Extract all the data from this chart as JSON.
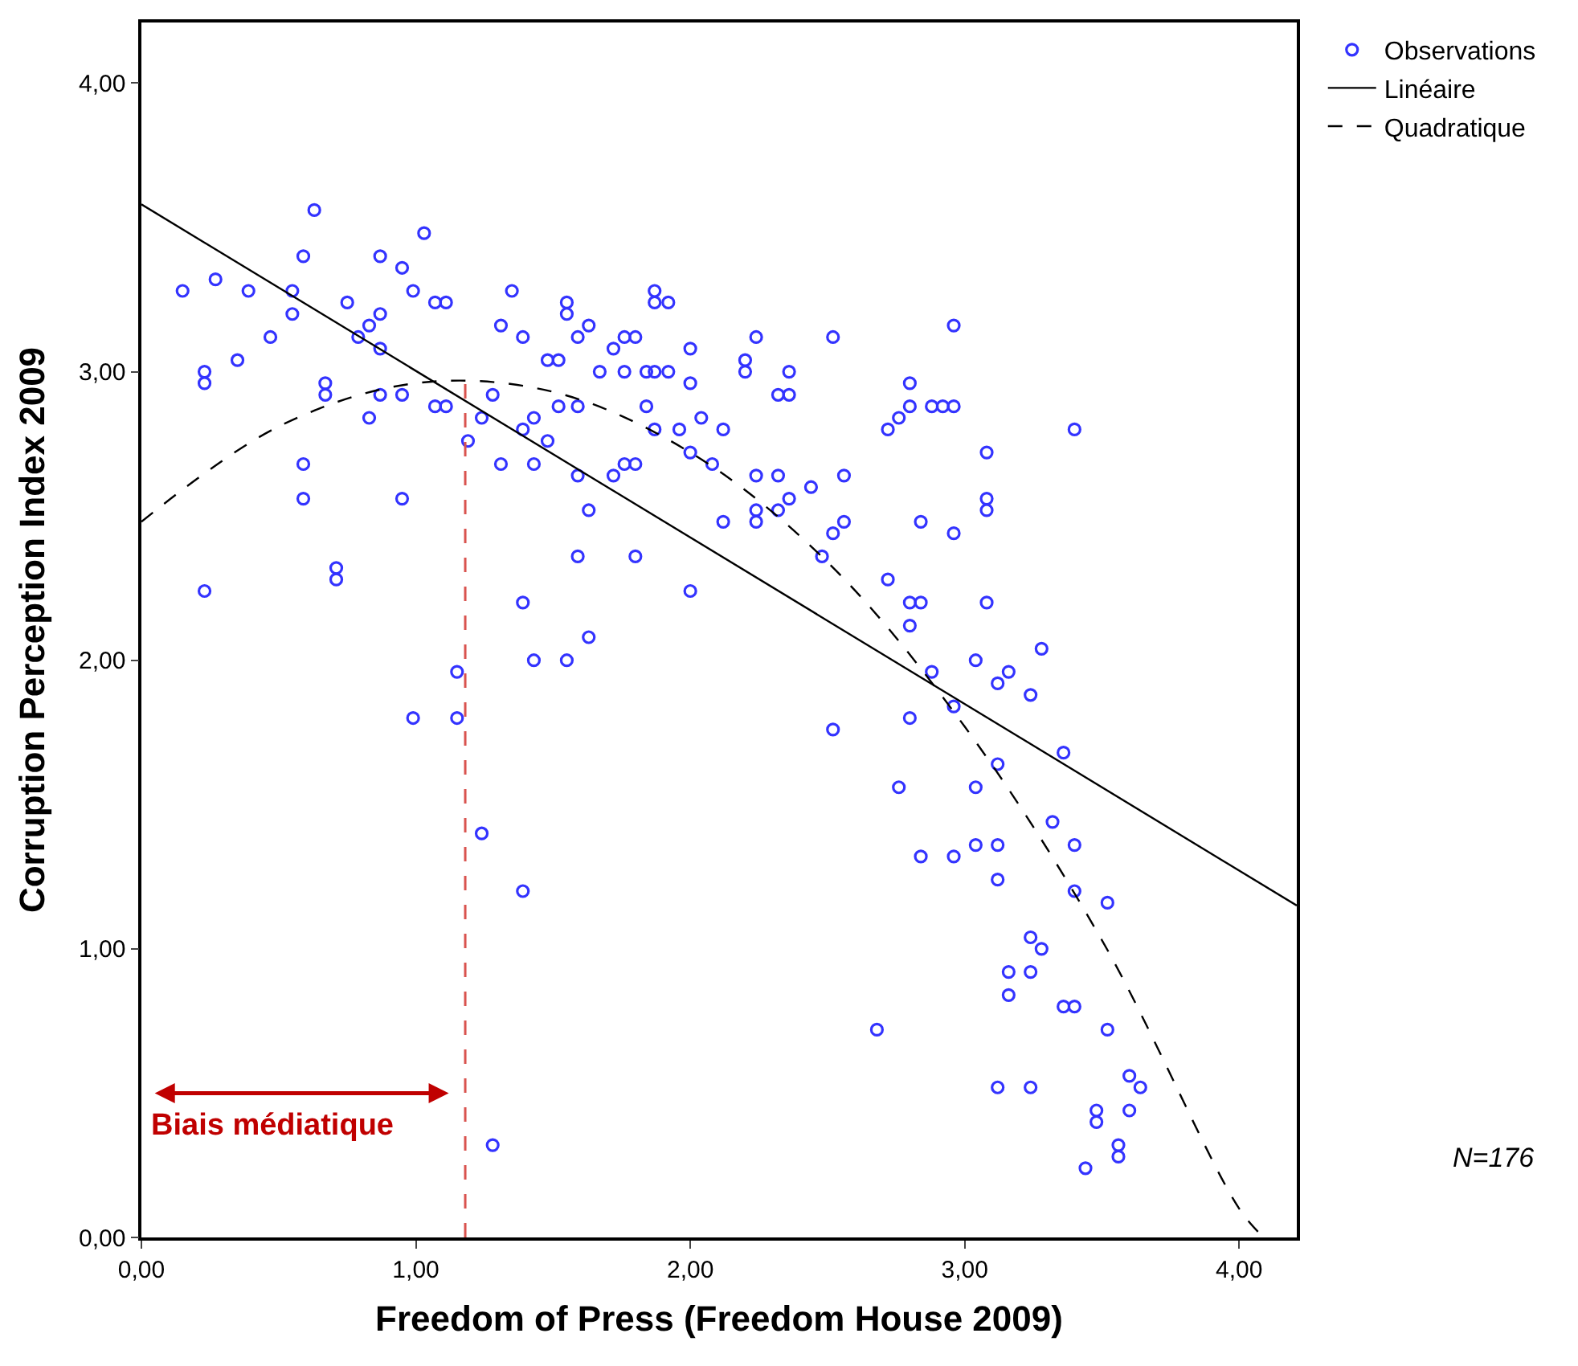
{
  "chart_data": {
    "type": "scatter",
    "xlabel": "Freedom of Press (Freedom House 2009)",
    "ylabel": "Corruption Perception Index 2009",
    "xlim": [
      0,
      4.21
    ],
    "ylim": [
      0,
      4.21
    ],
    "xticks": [
      {
        "value": 0,
        "label": "0,00"
      },
      {
        "value": 1,
        "label": "1,00"
      },
      {
        "value": 2,
        "label": "2,00"
      },
      {
        "value": 3,
        "label": "3,00"
      },
      {
        "value": 4,
        "label": "4,00"
      }
    ],
    "yticks": [
      {
        "value": 0,
        "label": "0,00"
      },
      {
        "value": 1,
        "label": "1,00"
      },
      {
        "value": 2,
        "label": "2,00"
      },
      {
        "value": 3,
        "label": "3,00"
      },
      {
        "value": 4,
        "label": "4,00"
      }
    ],
    "legend": "top right",
    "series": [
      {
        "name": "Observations",
        "marker": "circle",
        "color": "#3333ff",
        "x": [
          0.15,
          0.27,
          0.39,
          0.55,
          0.55,
          0.63,
          0.59,
          0.47,
          0.35,
          0.23,
          0.23,
          0.67,
          0.67,
          0.75,
          0.79,
          0.83,
          0.87,
          0.87,
          0.87,
          0.95,
          0.99,
          1.03,
          1.07,
          1.11,
          0.83,
          0.87,
          0.95,
          1.07,
          1.11,
          0.59,
          0.59,
          0.95,
          0.71,
          0.71,
          0.23,
          1.19,
          1.24,
          1.28,
          1.31,
          1.35,
          1.39,
          1.48,
          1.39,
          1.43,
          1.48,
          1.31,
          1.43,
          1.39,
          1.43,
          1.15,
          1.55,
          1.55,
          1.63,
          1.59,
          1.87,
          1.87,
          1.92,
          1.72,
          1.76,
          1.8,
          1.52,
          1.67,
          1.76,
          1.84,
          1.87,
          1.92,
          2.0,
          2.0,
          2.24,
          2.2,
          2.2,
          2.36,
          2.52,
          2.32,
          2.36,
          2.8,
          2.8,
          2.76,
          2.72,
          2.88,
          1.52,
          1.59,
          1.84,
          1.87,
          1.96,
          2.04,
          2.12,
          2.0,
          2.08,
          1.59,
          1.72,
          1.76,
          1.8,
          1.63,
          2.24,
          2.32,
          2.44,
          2.56,
          2.36,
          2.24,
          2.32,
          2.12,
          2.24,
          2.52,
          2.56,
          2.84,
          2.48,
          1.59,
          1.8,
          2.0,
          2.72,
          2.8,
          2.84,
          2.8,
          1.63,
          1.55,
          2.88,
          2.96,
          2.92,
          2.96,
          3.4,
          3.08,
          3.08,
          3.08,
          2.96,
          3.08,
          3.28,
          3.04,
          3.16,
          3.12,
          3.24,
          2.96,
          2.8,
          2.52,
          3.36,
          3.12,
          2.76,
          3.04,
          3.32,
          3.4,
          2.84,
          2.96,
          3.04,
          3.12,
          3.12,
          3.4,
          3.52,
          3.24,
          3.28,
          3.16,
          3.24,
          3.16,
          3.36,
          3.4,
          3.52,
          2.68,
          3.6,
          3.64,
          3.12,
          3.24,
          3.48,
          3.48,
          3.6,
          3.56,
          3.56,
          3.44,
          0.99,
          1.15,
          1.24,
          1.39,
          1.28
        ],
        "values": [
          3.28,
          3.32,
          3.28,
          3.28,
          3.2,
          3.56,
          3.4,
          3.12,
          3.04,
          3.0,
          2.96,
          2.96,
          2.92,
          3.24,
          3.12,
          3.16,
          3.2,
          3.4,
          3.08,
          3.36,
          3.28,
          3.48,
          3.24,
          3.24,
          2.84,
          2.92,
          2.92,
          2.88,
          2.88,
          2.68,
          2.56,
          2.56,
          2.32,
          2.28,
          2.24,
          2.76,
          2.84,
          2.92,
          3.16,
          3.28,
          3.12,
          3.04,
          2.8,
          2.84,
          2.76,
          2.68,
          2.68,
          2.2,
          2.0,
          1.96,
          3.24,
          3.2,
          3.16,
          3.12,
          3.28,
          3.24,
          3.24,
          3.08,
          3.12,
          3.12,
          3.04,
          3.0,
          3.0,
          3.0,
          3.0,
          3.0,
          3.08,
          2.96,
          3.12,
          3.04,
          3.0,
          3.0,
          3.12,
          2.92,
          2.92,
          2.96,
          2.88,
          2.84,
          2.8,
          2.88,
          2.88,
          2.88,
          2.88,
          2.8,
          2.8,
          2.84,
          2.8,
          2.72,
          2.68,
          2.64,
          2.64,
          2.68,
          2.68,
          2.52,
          2.64,
          2.64,
          2.6,
          2.64,
          2.56,
          2.52,
          2.52,
          2.48,
          2.48,
          2.44,
          2.48,
          2.48,
          2.36,
          2.36,
          2.36,
          2.24,
          2.28,
          2.2,
          2.2,
          2.12,
          2.08,
          2.0,
          1.96,
          3.16,
          2.88,
          2.88,
          2.8,
          2.72,
          2.56,
          2.52,
          2.44,
          2.2,
          2.04,
          2.0,
          1.96,
          1.92,
          1.88,
          1.84,
          1.8,
          1.76,
          1.68,
          1.64,
          1.56,
          1.56,
          1.44,
          1.36,
          1.32,
          1.32,
          1.36,
          1.36,
          1.24,
          1.2,
          1.16,
          1.04,
          1.0,
          0.92,
          0.92,
          0.84,
          0.8,
          0.8,
          0.72,
          0.72,
          0.56,
          0.52,
          0.52,
          0.52,
          0.44,
          0.4,
          0.44,
          0.32,
          0.28,
          0.24,
          1.8,
          1.8,
          1.4,
          1.2,
          0.32
        ]
      },
      {
        "name": "Linéaire",
        "type": "line",
        "color": "#000000",
        "line_style": "solid",
        "marker": "none",
        "x": [
          0,
          4.21
        ],
        "values": [
          3.58,
          1.15
        ]
      },
      {
        "name": "Quadratique",
        "type": "line",
        "color": "#000000",
        "line_style": "dashed",
        "marker": "none",
        "x": [
          0,
          0.5,
          1,
          1.5,
          2,
          2.5,
          3,
          3.5,
          4,
          4.09
        ],
        "values": [
          2.48,
          2.81,
          2.96,
          2.93,
          2.72,
          2.34,
          1.77,
          1.03,
          0.1,
          0
        ]
      }
    ],
    "ref_lines": [
      {
        "axis": "x",
        "value": 1.18,
        "color": "#d9534f",
        "line_style": "dashed"
      }
    ],
    "annotations": [
      "Biais médiatique",
      "N=176"
    ]
  }
}
